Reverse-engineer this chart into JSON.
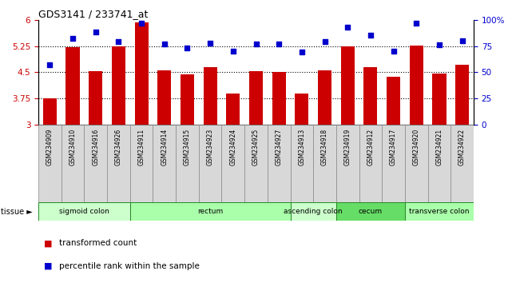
{
  "title": "GDS3141 / 233741_at",
  "samples": [
    "GSM234909",
    "GSM234910",
    "GSM234916",
    "GSM234926",
    "GSM234911",
    "GSM234914",
    "GSM234915",
    "GSM234923",
    "GSM234924",
    "GSM234925",
    "GSM234927",
    "GSM234913",
    "GSM234918",
    "GSM234919",
    "GSM234912",
    "GSM234917",
    "GSM234920",
    "GSM234921",
    "GSM234922"
  ],
  "bar_values": [
    3.75,
    5.22,
    4.52,
    5.23,
    5.93,
    4.55,
    4.44,
    4.64,
    3.88,
    4.54,
    4.5,
    3.89,
    4.55,
    5.25,
    4.64,
    4.38,
    5.27,
    4.46,
    4.72
  ],
  "dot_values": [
    57,
    82,
    88,
    79,
    97,
    77,
    73,
    78,
    70,
    77,
    77,
    69,
    79,
    93,
    85,
    70,
    97,
    76,
    80
  ],
  "bar_color": "#cc0000",
  "dot_color": "#0000cc",
  "ylim_left": [
    3.0,
    6.0
  ],
  "ylim_right": [
    0,
    100
  ],
  "yticks_left": [
    3.0,
    3.75,
    4.5,
    5.25,
    6.0
  ],
  "yticks_right": [
    0,
    25,
    50,
    75,
    100
  ],
  "ytick_labels_left": [
    "3",
    "3.75",
    "4.5",
    "5.25",
    "6"
  ],
  "ytick_labels_right": [
    "0",
    "25",
    "50",
    "75",
    "100%"
  ],
  "hlines": [
    3.75,
    4.5,
    5.25
  ],
  "tissue_groups": [
    {
      "label": "sigmoid colon",
      "start": 0,
      "end": 4,
      "color": "#ccffcc"
    },
    {
      "label": "rectum",
      "start": 4,
      "end": 11,
      "color": "#aaffaa"
    },
    {
      "label": "ascending colon",
      "start": 11,
      "end": 13,
      "color": "#ccffcc"
    },
    {
      "label": "cecum",
      "start": 13,
      "end": 16,
      "color": "#66dd66"
    },
    {
      "label": "transverse colon",
      "start": 16,
      "end": 19,
      "color": "#aaffaa"
    }
  ],
  "legend_bar_label": "transformed count",
  "legend_dot_label": "percentile rank within the sample",
  "tissue_label": "tissue ►",
  "tick_label_color_left": "#cc0000",
  "tick_label_color_right": "#0000cc"
}
